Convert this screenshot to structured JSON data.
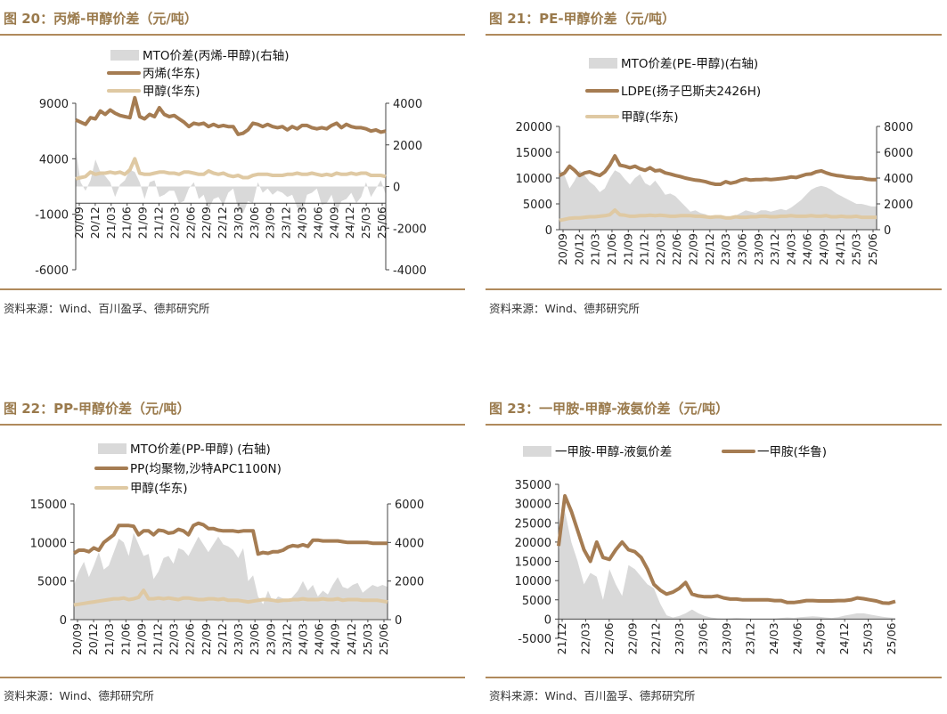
{
  "colors": {
    "area": "#d9d9d9",
    "line1": "#a57c52",
    "line2": "#dfc9a3",
    "title": "#9a7a4c",
    "rule": "#b08a5c"
  },
  "panels": [
    {
      "title": "图 20：丙烯-甲醇价差（元/吨）",
      "source": "资料来源：Wind、百川盈孚、德邦研究所",
      "chart_data": {
        "type": "line",
        "x_labels": [
          "20/09",
          "20/12",
          "21/03",
          "21/06",
          "21/09",
          "21/12",
          "22/03",
          "22/06",
          "22/09",
          "22/12",
          "23/03",
          "23/06",
          "23/09",
          "23/12",
          "24/03",
          "24/06",
          "24/09",
          "24/12",
          "25/03",
          "25/06"
        ],
        "y_left": {
          "min": -6000,
          "max": 9000,
          "ticks": [
            "9000",
            "4000",
            "-1000",
            "-6000"
          ]
        },
        "y_right": {
          "min": -4000,
          "max": 4000,
          "ticks": [
            "4000",
            "2000",
            "0",
            "-2000",
            "-4000"
          ]
        },
        "series": [
          {
            "name": "MTO价差(丙烯-甲醇)(右轴)",
            "kind": "area",
            "axis": "right",
            "values": [
              1800,
              200,
              -200,
              300,
              1300,
              700,
              500,
              200,
              -500,
              100,
              300,
              800,
              700,
              200,
              -600,
              200,
              300,
              -500,
              -400,
              -200,
              -200,
              -800,
              -700,
              -100,
              200,
              -600,
              -400,
              -1100,
              -600,
              -500,
              -900,
              -300,
              -100,
              -1100,
              -1300,
              -700,
              -800,
              200,
              -300,
              -100,
              -400,
              -200,
              -300,
              -500,
              -400,
              -1000,
              -1300,
              -400,
              -300,
              -100,
              -900,
              -800,
              -400,
              -1200,
              -700,
              -600,
              -300,
              -800,
              -500,
              200,
              -500,
              -100,
              300,
              -400
            ]
          },
          {
            "name": "丙烯(华东)",
            "kind": "line",
            "axis": "left",
            "values": [
              7500,
              7300,
              7100,
              7700,
              7600,
              8300,
              8000,
              8400,
              8100,
              7900,
              7800,
              7700,
              9500,
              7800,
              7600,
              8000,
              7800,
              8600,
              8000,
              7800,
              7900,
              7600,
              7300,
              6900,
              7200,
              7100,
              7200,
              6900,
              7100,
              6900,
              7000,
              6900,
              6900,
              6200,
              6300,
              6600,
              7200,
              7100,
              6900,
              7100,
              6900,
              6800,
              6900,
              6600,
              6900,
              6700,
              7000,
              7000,
              6800,
              6700,
              6800,
              6700,
              7000,
              7200,
              6800,
              7100,
              6900,
              6800,
              6800,
              6700,
              6500,
              6600,
              6400,
              6500
            ]
          },
          {
            "name": "甲醇(华东)",
            "kind": "line",
            "axis": "left",
            "values": [
              2200,
              2300,
              2400,
              2800,
              2600,
              2700,
              2700,
              2800,
              2700,
              2800,
              2600,
              3000,
              4000,
              2700,
              2600,
              2600,
              2700,
              2800,
              2800,
              2700,
              2700,
              2600,
              2800,
              2800,
              2700,
              2600,
              2600,
              2900,
              2700,
              2600,
              2700,
              2500,
              2400,
              2500,
              2300,
              2300,
              2500,
              2600,
              2600,
              2600,
              2500,
              2500,
              2500,
              2600,
              2600,
              2700,
              2600,
              2600,
              2700,
              2600,
              2500,
              2600,
              2500,
              2700,
              2600,
              2600,
              2700,
              2600,
              2700,
              2700,
              2500,
              2500,
              2500,
              2400
            ]
          }
        ]
      }
    },
    {
      "title": "图 21：PE-甲醇价差（元/吨）",
      "source": "资料来源：Wind、德邦研究所",
      "chart_data": {
        "type": "line",
        "x_labels": [
          "20/09",
          "20/12",
          "21/03",
          "21/06",
          "21/09",
          "21/12",
          "22/03",
          "22/06",
          "22/09",
          "22/12",
          "23/03",
          "23/06",
          "23/09",
          "23/12",
          "24/03",
          "24/06",
          "24/09",
          "24/12",
          "25/03",
          "25/06"
        ],
        "y_left": {
          "min": 0,
          "max": 20000,
          "ticks": [
            "20000",
            "15000",
            "10000",
            "5000",
            "0"
          ]
        },
        "y_right": {
          "min": 0,
          "max": 8000,
          "ticks": [
            "8000",
            "6000",
            "4000",
            "2000",
            "0"
          ]
        },
        "series": [
          {
            "name": "MTO价差(PE-甲醇)(右轴)",
            "kind": "area",
            "axis": "right",
            "values": [
              4700,
              4200,
              3200,
              3800,
              4600,
              4200,
              3700,
              3400,
              2900,
              3200,
              4000,
              4600,
              4400,
              3900,
              3500,
              4000,
              4300,
              3600,
              3400,
              3800,
              3300,
              2700,
              2800,
              2600,
              2200,
              1800,
              1400,
              1500,
              1300,
              1200,
              1000,
              1100,
              900,
              1000,
              1000,
              1100,
              1300,
              1500,
              1400,
              1300,
              1500,
              1500,
              1400,
              1500,
              1600,
              1500,
              1700,
              2000,
              2300,
              2700,
              3100,
              3300,
              3400,
              3300,
              3100,
              2800,
              2600,
              2400,
              2200,
              2000,
              2000,
              1900,
              1800,
              1800
            ]
          },
          {
            "name": "LDPE(扬子巴斯夫2426H)",
            "kind": "line",
            "axis": "left",
            "values": [
              10500,
              11000,
              12300,
              11500,
              10500,
              11000,
              11200,
              10800,
              10500,
              11200,
              12500,
              14300,
              12500,
              12300,
              12000,
              12300,
              11800,
              11500,
              12000,
              11400,
              11500,
              11000,
              10800,
              10500,
              10300,
              10000,
              9800,
              9600,
              9500,
              9300,
              9000,
              8800,
              8800,
              9300,
              9000,
              9200,
              9600,
              9800,
              9600,
              9700,
              9700,
              9800,
              9700,
              9800,
              9900,
              10000,
              10200,
              10100,
              10400,
              10700,
              10800,
              11200,
              11400,
              11000,
              10700,
              10500,
              10400,
              10200,
              10100,
              10000,
              10000,
              9800,
              9700,
              9700
            ]
          },
          {
            "name": "甲醇(华东)",
            "kind": "line",
            "axis": "left",
            "values": [
              1800,
              2000,
              2200,
              2300,
              2300,
              2400,
              2500,
              2500,
              2600,
              2700,
              2900,
              3800,
              2900,
              2800,
              2600,
              2600,
              2700,
              2700,
              2800,
              2700,
              2800,
              2700,
              2600,
              2600,
              2700,
              2700,
              2700,
              2600,
              2600,
              2500,
              2400,
              2500,
              2500,
              2300,
              2300,
              2500,
              2400,
              2400,
              2500,
              2500,
              2600,
              2600,
              2500,
              2500,
              2600,
              2600,
              2700,
              2600,
              2600,
              2600,
              2700,
              2600,
              2600,
              2700,
              2500,
              2500,
              2600,
              2500,
              2500,
              2600,
              2400,
              2400,
              2400,
              2400
            ]
          }
        ]
      }
    },
    {
      "title": "图 22：PP-甲醇价差（元/吨）",
      "source": "资料来源：Wind、德邦研究所",
      "chart_data": {
        "type": "line",
        "x_labels": [
          "20/09",
          "20/12",
          "21/03",
          "21/06",
          "21/09",
          "21/12",
          "22/03",
          "22/06",
          "22/09",
          "22/12",
          "23/03",
          "23/06",
          "23/09",
          "23/12",
          "24/03",
          "24/06",
          "24/09",
          "24/12",
          "25/03",
          "25/06"
        ],
        "y_left": {
          "min": 0,
          "max": 15000,
          "ticks": [
            "15000",
            "10000",
            "5000",
            "0"
          ]
        },
        "y_right": {
          "min": 0,
          "max": 6000,
          "ticks": [
            "6000",
            "4000",
            "2000",
            "0"
          ]
        },
        "series": [
          {
            "name": "MTO价差(PP-甲醇) (右轴)",
            "kind": "area",
            "axis": "right",
            "values": [
              1800,
              2500,
              3000,
              2200,
              2800,
              3500,
              2600,
              2800,
              3500,
              4200,
              4000,
              3300,
              4500,
              3900,
              3300,
              3400,
              2100,
              2500,
              3200,
              3300,
              2900,
              3700,
              3600,
              3300,
              3800,
              4300,
              3900,
              3500,
              3900,
              4300,
              3900,
              3800,
              3600,
              3200,
              3700,
              2000,
              2300,
              1200,
              800,
              1500,
              900,
              1200,
              1100,
              900,
              1200,
              1500,
              2000,
              1500,
              1800,
              1200,
              1500,
              1300,
              1800,
              2200,
              1700,
              1600,
              1800,
              1900,
              1400,
              1600,
              1800,
              1700,
              1800,
              1700
            ]
          },
          {
            "name": "PP(均聚物,沙特APC1100N)",
            "kind": "line",
            "axis": "left",
            "values": [
              8600,
              9000,
              9000,
              8800,
              9300,
              9000,
              10000,
              10500,
              11000,
              12200,
              12200,
              12200,
              12100,
              11000,
              11500,
              11500,
              11000,
              11600,
              11500,
              11200,
              11300,
              11700,
              11500,
              11000,
              12200,
              12500,
              12300,
              11800,
              11800,
              11600,
              11500,
              11500,
              11500,
              11400,
              11500,
              11500,
              11500,
              8500,
              8700,
              8600,
              8800,
              8800,
              9000,
              9400,
              9600,
              9500,
              9700,
              9500,
              10300,
              10300,
              10200,
              10200,
              10200,
              10200,
              10100,
              10000,
              10000,
              10000,
              10000,
              10000,
              9900,
              9900,
              9900,
              9900
            ]
          },
          {
            "name": "甲醇(华东)",
            "kind": "line",
            "axis": "left",
            "values": [
              1900,
              2000,
              2100,
              2200,
              2300,
              2400,
              2500,
              2600,
              2700,
              2700,
              2800,
              2600,
              2700,
              2900,
              3800,
              2700,
              2700,
              2800,
              2700,
              2800,
              2700,
              2600,
              2800,
              2800,
              2700,
              2600,
              2600,
              2700,
              2700,
              2600,
              2700,
              2500,
              2500,
              2500,
              2400,
              2300,
              2400,
              2500,
              2600,
              2600,
              2500,
              2400,
              2500,
              2500,
              2600,
              2600,
              2700,
              2600,
              2600,
              2600,
              2700,
              2600,
              2600,
              2700,
              2500,
              2600,
              2600,
              2600,
              2500,
              2500,
              2500,
              2500,
              2400,
              2300
            ]
          }
        ]
      }
    },
    {
      "title": "图 23：一甲胺-甲醇-液氨价差（元/吨）",
      "source": "资料来源：Wind、百川盈孚、德邦研究所",
      "chart_data": {
        "type": "line",
        "x_labels": [
          "21/12",
          "22/03",
          "22/06",
          "22/09",
          "22/12",
          "23/03",
          "23/06",
          "23/09",
          "23/12",
          "24/03",
          "24/06",
          "24/09",
          "24/12",
          "25/03",
          "25/06"
        ],
        "y": {
          "min": -5000,
          "max": 35000,
          "ticks": [
            "35000",
            "30000",
            "25000",
            "20000",
            "15000",
            "10000",
            "5000",
            "0",
            "-5000"
          ]
        },
        "series": [
          {
            "name": "一甲胺-甲醇-液氨价差",
            "kind": "area",
            "values": [
              17000,
              28000,
              20000,
              15000,
              9000,
              12000,
              11000,
              5000,
              13000,
              9000,
              6000,
              14000,
              13000,
              11000,
              9000,
              8000,
              4000,
              1000,
              400,
              800,
              1500,
              2500,
              1500,
              800,
              400,
              200,
              100,
              200,
              300,
              200,
              100,
              100,
              100,
              100,
              100,
              300,
              400,
              300,
              500,
              600,
              700,
              600,
              400,
              300,
              500,
              900,
              1200,
              1500,
              1500,
              1200,
              900,
              600,
              400,
              300
            ]
          },
          {
            "name": "一甲胺(华鲁)",
            "kind": "line",
            "values": [
              19000,
              32000,
              28000,
              23000,
              18000,
              15000,
              20000,
              16000,
              15500,
              18000,
              20000,
              18000,
              17500,
              16000,
              13000,
              9000,
              7500,
              6500,
              7000,
              8000,
              9500,
              6500,
              6000,
              5800,
              5800,
              6000,
              5500,
              5200,
              5200,
              5000,
              5000,
              5000,
              5000,
              5000,
              4800,
              4800,
              4300,
              4300,
              4500,
              4800,
              4800,
              4700,
              4700,
              4700,
              4800,
              4800,
              5000,
              5500,
              5300,
              5000,
              4700,
              4200,
              4100,
              4600
            ]
          }
        ]
      }
    }
  ]
}
